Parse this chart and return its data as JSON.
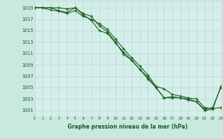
{
  "background_color": "#c8e8e0",
  "plot_bg_color": "#d5eeea",
  "grid_color": "#b0d8cc",
  "line_color": "#1a5e20",
  "marker_color": "#1a5e20",
  "xlabel": "Graphe pression niveau de la mer (hPa)",
  "ylim": [
    1000,
    1020
  ],
  "xlim": [
    0,
    23
  ],
  "yticks": [
    1001,
    1003,
    1005,
    1007,
    1009,
    1011,
    1013,
    1015,
    1017,
    1019
  ],
  "xticks": [
    0,
    1,
    2,
    3,
    4,
    5,
    6,
    7,
    8,
    9,
    10,
    11,
    12,
    13,
    14,
    15,
    16,
    17,
    18,
    19,
    20,
    21,
    22,
    23
  ],
  "series1_x": [
    0,
    1,
    2,
    3,
    4,
    5,
    6,
    7,
    8,
    9,
    10,
    11,
    12,
    13,
    14,
    15,
    16,
    17,
    18,
    19,
    20,
    21,
    22,
    23
  ],
  "series1_y": [
    1019,
    1019,
    1019,
    1018.5,
    1018.2,
    1019,
    1018,
    1017.5,
    1015.8,
    1014.8,
    1013.0,
    1010.8,
    1009.8,
    1008.2,
    1006.8,
    1005.0,
    1003.2,
    1003.4,
    1003.2,
    1003.0,
    1002.5,
    1001.2,
    1001.5,
    1005.0
  ],
  "series2_x": [
    0,
    1,
    2,
    3,
    4,
    5,
    6,
    7,
    8,
    9,
    10,
    11,
    12,
    13,
    14,
    15,
    16,
    17,
    18,
    19,
    20,
    21,
    22,
    23
  ],
  "series2_y": [
    1019,
    1019,
    1018.6,
    1018.4,
    1018.0,
    1018.5,
    1017.5,
    1017.0,
    1016.2,
    1015.2,
    1013.5,
    1011.8,
    1010.2,
    1008.8,
    1007.2,
    1005.2,
    1004.8,
    1003.8,
    1003.5,
    1003.2,
    1003.0,
    1001.5,
    1001.3,
    1001.5
  ],
  "series3_x": [
    0,
    1,
    2,
    3,
    4,
    5,
    6,
    7,
    8,
    9,
    10,
    11,
    12,
    13,
    14,
    15,
    16,
    17,
    18,
    19,
    20,
    21,
    22,
    23
  ],
  "series3_y": [
    1019,
    1019,
    1019,
    1019,
    1018.8,
    1019.0,
    1017.8,
    1016.8,
    1015.0,
    1014.5,
    1012.8,
    1011.2,
    1009.8,
    1008.2,
    1006.5,
    1005.0,
    1003.2,
    1003.2,
    1003.2,
    1002.8,
    1002.5,
    1001.0,
    1001.2,
    1005.2
  ],
  "figwidth": 3.2,
  "figheight": 2.0,
  "dpi": 100
}
